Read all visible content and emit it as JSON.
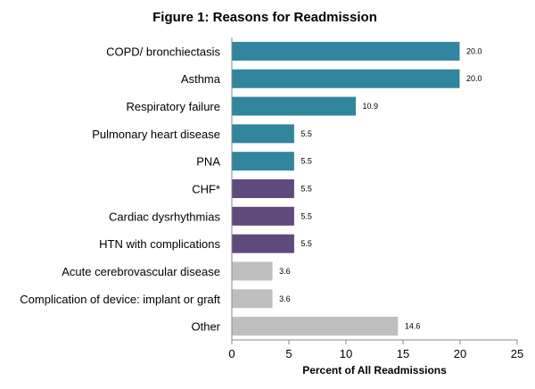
{
  "chart_data": {
    "type": "bar",
    "orientation": "horizontal",
    "title": "Figure 1: Reasons for Readmission",
    "xlabel": "Percent of All Readmissions",
    "ylabel": "",
    "xlim": [
      0,
      25
    ],
    "xticks": [
      "0",
      "5",
      "10",
      "15",
      "20",
      "25"
    ],
    "grid": false,
    "categories": [
      "COPD/ bronchiectasis",
      "Asthma",
      "Respiratory failure",
      "Pulmonary heart disease",
      "PNA",
      "CHF*",
      "Cardiac dysrhythmias",
      "HTN with complications",
      "Acute cerebrovascular disease",
      "Complication of device: implant or graft",
      "Other"
    ],
    "values": [
      20.0,
      20.0,
      10.9,
      5.5,
      5.5,
      5.5,
      5.5,
      5.5,
      3.6,
      3.6,
      14.6
    ],
    "value_labels": [
      "20.0",
      "20.0",
      "10.9",
      "5.5",
      "5.5",
      "5.5",
      "5.5",
      "5.5",
      "3.6",
      "3.6",
      "14.6"
    ],
    "colors": [
      "#31859c",
      "#31859c",
      "#31859c",
      "#31859c",
      "#31859c",
      "#604a7b",
      "#604a7b",
      "#604a7b",
      "#bfbfbf",
      "#bfbfbf",
      "#bfbfbf"
    ],
    "bar_border_color": "#ffffff"
  }
}
